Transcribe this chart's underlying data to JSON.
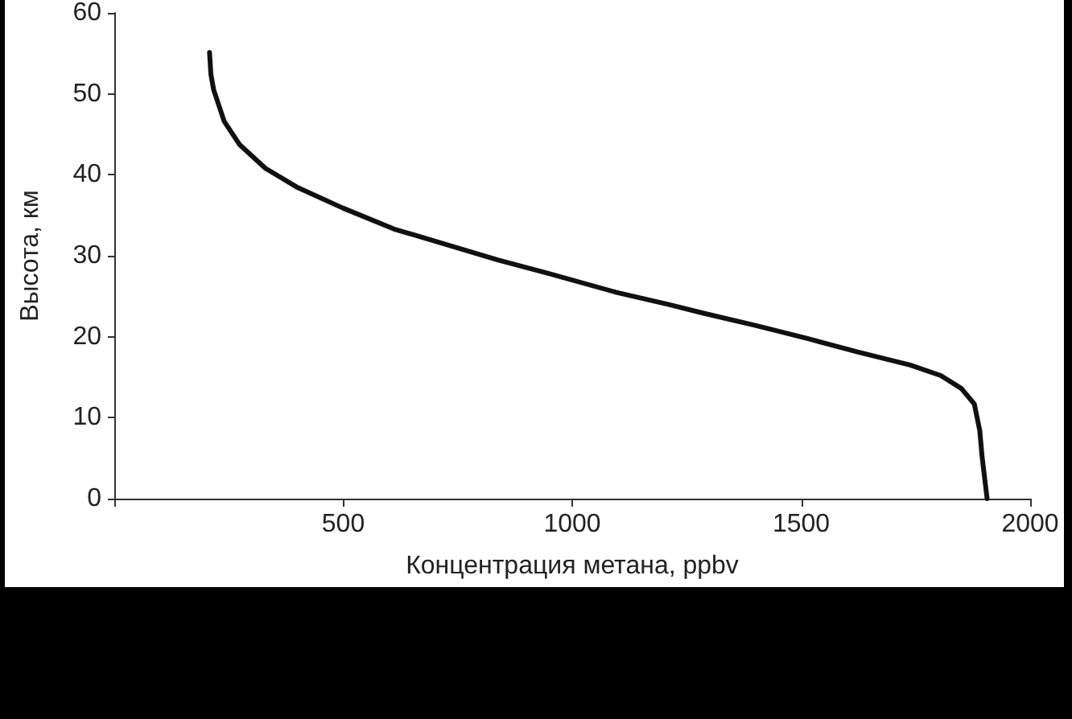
{
  "chart_data": {
    "type": "line",
    "xlabel": "Концентрация метана, ppbv",
    "ylabel": "Высота, км",
    "xlim": [
      0,
      2000
    ],
    "xticks": [
      {
        "value": 0,
        "label": null
      },
      500,
      1000,
      1500,
      2000
    ],
    "ylim": [
      0,
      60
    ],
    "yticks": [
      0,
      10,
      20,
      30,
      40,
      50,
      60
    ],
    "grid": false,
    "marker": "none",
    "line_style": "solid",
    "series": [
      {
        "color": "#111111",
        "x": [
          208,
          211,
          217,
          240,
          274,
          330,
          398,
          499,
          611,
          724,
          837,
          949,
          1095,
          1209,
          1287,
          1400,
          1512,
          1625,
          1738,
          1805,
          1850,
          1878,
          1890,
          1895,
          1906
        ],
        "values": [
          55.1,
          52.4,
          50.5,
          46.6,
          43.7,
          40.8,
          38.5,
          35.9,
          33.3,
          31.4,
          29.5,
          27.8,
          25.5,
          24.0,
          22.9,
          21.4,
          19.8,
          18.1,
          16.5,
          15.2,
          13.6,
          11.7,
          8.4,
          5.2,
          0
        ]
      }
    ]
  }
}
